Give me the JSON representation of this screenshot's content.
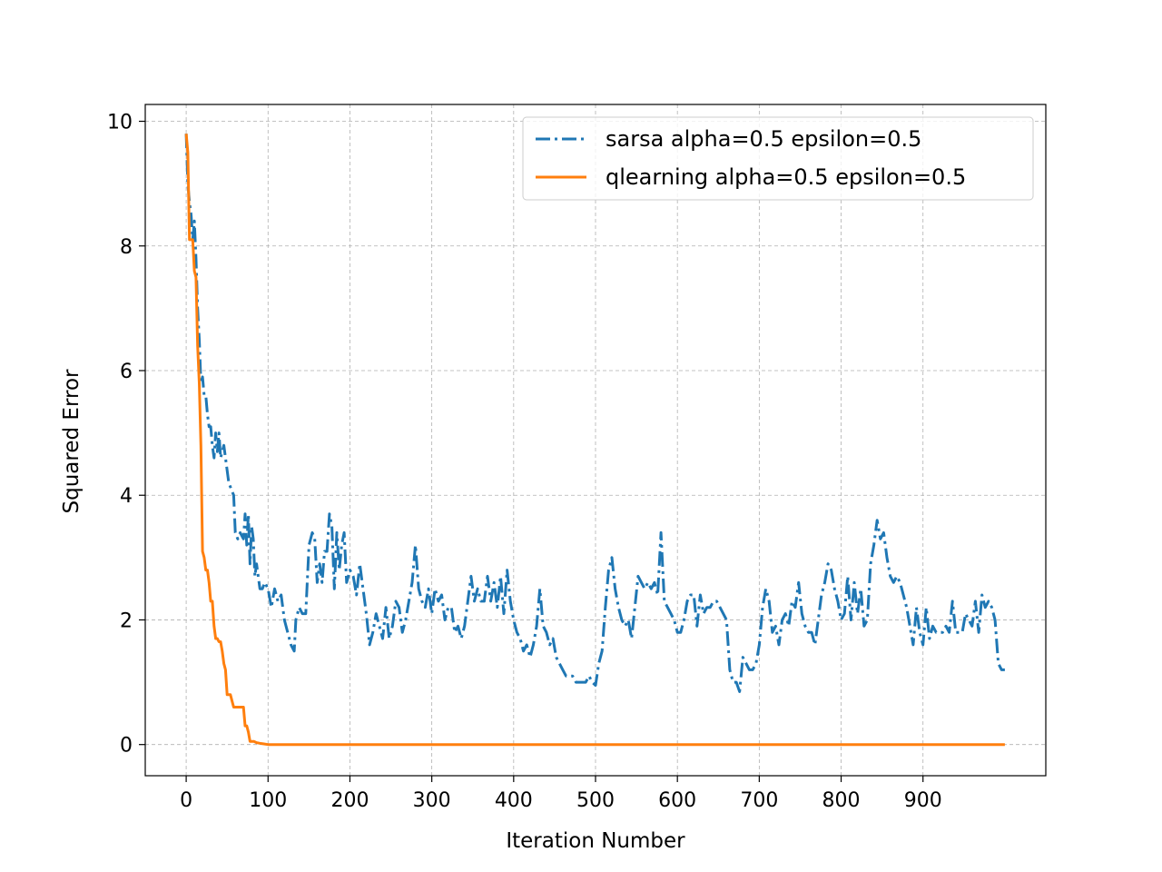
{
  "chart_data": {
    "type": "line",
    "title": "",
    "xlabel": "Iteration Number",
    "ylabel": "Squared Error",
    "xlim": [
      -50,
      1050
    ],
    "ylim": [
      -0.5,
      10.27
    ],
    "xticks": [
      0,
      100,
      200,
      300,
      400,
      500,
      600,
      700,
      800,
      900
    ],
    "yticks": [
      0,
      2,
      4,
      6,
      8,
      10
    ],
    "grid": true,
    "legend_position": "top-right",
    "series": [
      {
        "name": "sarsa alpha=0.5 epsilon=0.5",
        "color": "#1f77b4",
        "linestyle": "dash-dot",
        "points": [
          [
            0,
            9.8
          ],
          [
            2,
            9.0
          ],
          [
            4,
            8.7
          ],
          [
            6,
            8.5
          ],
          [
            8,
            8.1
          ],
          [
            10,
            8.4
          ],
          [
            12,
            7.8
          ],
          [
            14,
            7.0
          ],
          [
            16,
            6.5
          ],
          [
            18,
            5.8
          ],
          [
            20,
            5.9
          ],
          [
            22,
            5.6
          ],
          [
            24,
            5.6
          ],
          [
            26,
            5.3
          ],
          [
            28,
            5.1
          ],
          [
            30,
            5.1
          ],
          [
            32,
            4.8
          ],
          [
            34,
            4.6
          ],
          [
            36,
            5.0
          ],
          [
            38,
            4.7
          ],
          [
            40,
            5.0
          ],
          [
            42,
            4.6
          ],
          [
            44,
            4.7
          ],
          [
            46,
            4.8
          ],
          [
            48,
            4.6
          ],
          [
            50,
            4.4
          ],
          [
            52,
            4.2
          ],
          [
            55,
            4.1
          ],
          [
            58,
            4.0
          ],
          [
            60,
            3.4
          ],
          [
            63,
            3.3
          ],
          [
            66,
            3.4
          ],
          [
            70,
            3.3
          ],
          [
            72,
            3.7
          ],
          [
            74,
            3.2
          ],
          [
            76,
            3.7
          ],
          [
            78,
            2.9
          ],
          [
            80,
            3.5
          ],
          [
            82,
            3.3
          ],
          [
            84,
            2.7
          ],
          [
            86,
            2.9
          ],
          [
            90,
            2.5
          ],
          [
            93,
            2.5
          ],
          [
            96,
            2.6
          ],
          [
            100,
            2.5
          ],
          [
            104,
            2.2
          ],
          [
            108,
            2.5
          ],
          [
            112,
            2.3
          ],
          [
            116,
            2.4
          ],
          [
            120,
            2.0
          ],
          [
            124,
            1.8
          ],
          [
            128,
            1.6
          ],
          [
            132,
            1.5
          ],
          [
            134,
            2.0
          ],
          [
            138,
            2.2
          ],
          [
            142,
            2.1
          ],
          [
            146,
            2.1
          ],
          [
            150,
            3.2
          ],
          [
            154,
            3.4
          ],
          [
            157,
            3.3
          ],
          [
            160,
            2.6
          ],
          [
            163,
            2.9
          ],
          [
            166,
            2.6
          ],
          [
            169,
            3.1
          ],
          [
            172,
            3.1
          ],
          [
            175,
            3.7
          ],
          [
            178,
            3.5
          ],
          [
            181,
            2.5
          ],
          [
            184,
            3.4
          ],
          [
            187,
            2.8
          ],
          [
            190,
            3.2
          ],
          [
            193,
            3.4
          ],
          [
            196,
            2.6
          ],
          [
            200,
            2.8
          ],
          [
            204,
            2.7
          ],
          [
            208,
            2.4
          ],
          [
            212,
            2.9
          ],
          [
            216,
            2.5
          ],
          [
            220,
            2.1
          ],
          [
            224,
            1.6
          ],
          [
            228,
            1.8
          ],
          [
            232,
            2.1
          ],
          [
            236,
            1.9
          ],
          [
            240,
            1.7
          ],
          [
            244,
            2.2
          ],
          [
            248,
            1.7
          ],
          [
            252,
            1.9
          ],
          [
            256,
            2.3
          ],
          [
            260,
            2.2
          ],
          [
            264,
            1.8
          ],
          [
            268,
            2.0
          ],
          [
            272,
            2.3
          ],
          [
            276,
            2.6
          ],
          [
            280,
            3.2
          ],
          [
            284,
            2.5
          ],
          [
            288,
            2.3
          ],
          [
            292,
            2.2
          ],
          [
            296,
            2.5
          ],
          [
            300,
            2.1
          ],
          [
            304,
            2.5
          ],
          [
            308,
            2.3
          ],
          [
            312,
            2.4
          ],
          [
            316,
            2.0
          ],
          [
            320,
            2.2
          ],
          [
            324,
            2.2
          ],
          [
            328,
            1.8
          ],
          [
            332,
            1.9
          ],
          [
            336,
            1.7
          ],
          [
            340,
            1.9
          ],
          [
            344,
            2.3
          ],
          [
            348,
            2.7
          ],
          [
            352,
            2.3
          ],
          [
            356,
            2.5
          ],
          [
            360,
            2.3
          ],
          [
            364,
            2.3
          ],
          [
            368,
            2.7
          ],
          [
            372,
            2.3
          ],
          [
            376,
            2.6
          ],
          [
            380,
            2.2
          ],
          [
            384,
            2.7
          ],
          [
            388,
            2.1
          ],
          [
            392,
            2.8
          ],
          [
            396,
            2.3
          ],
          [
            400,
            2.0
          ],
          [
            404,
            1.8
          ],
          [
            408,
            1.7
          ],
          [
            412,
            1.5
          ],
          [
            416,
            1.6
          ],
          [
            420,
            1.4
          ],
          [
            424,
            1.6
          ],
          [
            428,
            1.9
          ],
          [
            432,
            2.5
          ],
          [
            436,
            1.9
          ],
          [
            440,
            1.8
          ],
          [
            444,
            1.6
          ],
          [
            448,
            1.7
          ],
          [
            452,
            1.4
          ],
          [
            456,
            1.3
          ],
          [
            460,
            1.2
          ],
          [
            464,
            1.1
          ],
          [
            468,
            1.1
          ],
          [
            472,
            1.1
          ],
          [
            476,
            1.0
          ],
          [
            480,
            1.0
          ],
          [
            484,
            1.0
          ],
          [
            488,
            1.0
          ],
          [
            492,
            1.1
          ],
          [
            496,
            1.0
          ],
          [
            500,
            0.95
          ],
          [
            504,
            1.3
          ],
          [
            508,
            1.5
          ],
          [
            512,
            2.2
          ],
          [
            516,
            2.8
          ],
          [
            520,
            3.0
          ],
          [
            524,
            2.5
          ],
          [
            528,
            2.2
          ],
          [
            532,
            2.0
          ],
          [
            536,
            1.9
          ],
          [
            540,
            2.0
          ],
          [
            544,
            1.7
          ],
          [
            548,
            2.2
          ],
          [
            552,
            2.7
          ],
          [
            556,
            2.6
          ],
          [
            560,
            2.5
          ],
          [
            564,
            2.6
          ],
          [
            568,
            2.5
          ],
          [
            572,
            2.6
          ],
          [
            576,
            2.4
          ],
          [
            580,
            3.4
          ],
          [
            584,
            2.3
          ],
          [
            588,
            2.2
          ],
          [
            592,
            2.1
          ],
          [
            596,
            2.0
          ],
          [
            600,
            1.8
          ],
          [
            604,
            1.8
          ],
          [
            608,
            2.0
          ],
          [
            612,
            2.3
          ],
          [
            616,
            2.4
          ],
          [
            620,
            2.4
          ],
          [
            624,
            1.9
          ],
          [
            628,
            2.4
          ],
          [
            632,
            2.1
          ],
          [
            636,
            2.2
          ],
          [
            640,
            2.2
          ],
          [
            644,
            2.3
          ],
          [
            648,
            2.3
          ],
          [
            652,
            2.2
          ],
          [
            656,
            2.1
          ],
          [
            660,
            2.0
          ],
          [
            664,
            1.2
          ],
          [
            668,
            1.0
          ],
          [
            672,
            1.0
          ],
          [
            676,
            0.85
          ],
          [
            680,
            1.4
          ],
          [
            684,
            1.3
          ],
          [
            688,
            1.2
          ],
          [
            692,
            1.2
          ],
          [
            696,
            1.3
          ],
          [
            700,
            1.6
          ],
          [
            704,
            2.2
          ],
          [
            708,
            2.5
          ],
          [
            712,
            2.3
          ],
          [
            716,
            1.8
          ],
          [
            720,
            1.9
          ],
          [
            724,
            1.6
          ],
          [
            728,
            2.0
          ],
          [
            732,
            2.1
          ],
          [
            736,
            1.9
          ],
          [
            740,
            2.3
          ],
          [
            744,
            2.2
          ],
          [
            748,
            2.6
          ],
          [
            752,
            2.1
          ],
          [
            756,
            1.9
          ],
          [
            760,
            1.8
          ],
          [
            764,
            1.8
          ],
          [
            768,
            1.6
          ],
          [
            772,
            2.0
          ],
          [
            776,
            2.4
          ],
          [
            780,
            2.6
          ],
          [
            784,
            2.9
          ],
          [
            788,
            2.8
          ],
          [
            792,
            2.5
          ],
          [
            796,
            2.3
          ],
          [
            800,
            2.0
          ],
          [
            804,
            2.1
          ],
          [
            808,
            2.7
          ],
          [
            812,
            2.0
          ],
          [
            816,
            2.6
          ],
          [
            820,
            2.1
          ],
          [
            824,
            2.5
          ],
          [
            828,
            1.9
          ],
          [
            832,
            2.0
          ],
          [
            836,
            2.9
          ],
          [
            840,
            3.2
          ],
          [
            844,
            3.6
          ],
          [
            848,
            3.3
          ],
          [
            852,
            3.4
          ],
          [
            856,
            3.0
          ],
          [
            860,
            2.7
          ],
          [
            864,
            2.6
          ],
          [
            868,
            2.7
          ],
          [
            872,
            2.6
          ],
          [
            876,
            2.4
          ],
          [
            880,
            2.2
          ],
          [
            884,
            1.9
          ],
          [
            888,
            1.6
          ],
          [
            892,
            2.2
          ],
          [
            896,
            1.8
          ],
          [
            900,
            1.6
          ],
          [
            904,
            2.2
          ],
          [
            908,
            1.7
          ],
          [
            912,
            1.9
          ],
          [
            916,
            1.8
          ],
          [
            920,
            1.8
          ],
          [
            924,
            1.8
          ],
          [
            928,
            1.9
          ],
          [
            932,
            1.8
          ],
          [
            936,
            2.3
          ],
          [
            940,
            1.8
          ],
          [
            944,
            1.8
          ],
          [
            948,
            1.8
          ],
          [
            952,
            2.1
          ],
          [
            956,
            2.0
          ],
          [
            960,
            1.9
          ],
          [
            964,
            2.3
          ],
          [
            968,
            1.8
          ],
          [
            972,
            2.4
          ],
          [
            976,
            2.2
          ],
          [
            980,
            2.3
          ],
          [
            984,
            2.2
          ],
          [
            988,
            2.0
          ],
          [
            992,
            1.3
          ],
          [
            996,
            1.2
          ],
          [
            1000,
            1.2
          ]
        ]
      },
      {
        "name": "qlearning alpha=0.5 epsilon=0.5",
        "color": "#ff7f0e",
        "linestyle": "solid",
        "points": [
          [
            0,
            9.8
          ],
          [
            2,
            9.5
          ],
          [
            4,
            8.1
          ],
          [
            6,
            8.1
          ],
          [
            8,
            8.1
          ],
          [
            10,
            7.6
          ],
          [
            12,
            7.5
          ],
          [
            14,
            6.4
          ],
          [
            16,
            5.8
          ],
          [
            18,
            4.8
          ],
          [
            20,
            3.1
          ],
          [
            22,
            3.0
          ],
          [
            24,
            2.8
          ],
          [
            26,
            2.8
          ],
          [
            28,
            2.6
          ],
          [
            30,
            2.3
          ],
          [
            32,
            2.3
          ],
          [
            34,
            1.9
          ],
          [
            36,
            1.7
          ],
          [
            38,
            1.7
          ],
          [
            40,
            1.65
          ],
          [
            42,
            1.65
          ],
          [
            44,
            1.5
          ],
          [
            46,
            1.3
          ],
          [
            48,
            1.2
          ],
          [
            50,
            0.8
          ],
          [
            52,
            0.8
          ],
          [
            54,
            0.8
          ],
          [
            56,
            0.7
          ],
          [
            58,
            0.6
          ],
          [
            60,
            0.6
          ],
          [
            63,
            0.6
          ],
          [
            66,
            0.6
          ],
          [
            70,
            0.6
          ],
          [
            72,
            0.3
          ],
          [
            74,
            0.3
          ],
          [
            76,
            0.2
          ],
          [
            78,
            0.05
          ],
          [
            80,
            0.05
          ],
          [
            83,
            0.05
          ],
          [
            86,
            0.03
          ],
          [
            90,
            0.02
          ],
          [
            95,
            0.01
          ],
          [
            100,
            0.0
          ],
          [
            150,
            0.0
          ],
          [
            200,
            0.0
          ],
          [
            300,
            0.0
          ],
          [
            400,
            0.0
          ],
          [
            500,
            0.0
          ],
          [
            600,
            0.0
          ],
          [
            700,
            0.0
          ],
          [
            800,
            0.0
          ],
          [
            900,
            0.0
          ],
          [
            1000,
            0.0
          ]
        ]
      }
    ]
  }
}
